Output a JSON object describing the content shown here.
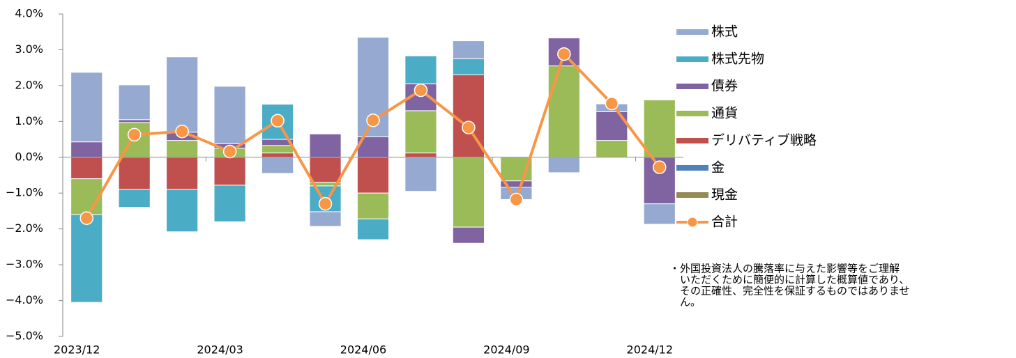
{
  "chart_data": {
    "type": "bar",
    "categories": [
      "2023/12",
      null,
      null,
      "2024/03",
      null,
      null,
      "2024/06",
      null,
      null,
      "2024/09",
      null,
      null,
      "2024/12"
    ],
    "series": [
      {
        "name": "株式",
        "color": "#95a9d1",
        "values": [
          1.94,
          0.97,
          2.1,
          1.6,
          -0.45,
          -0.41,
          2.78,
          -0.95,
          0.5,
          -0.34,
          -0.43,
          0.22,
          -0.57
        ]
      },
      {
        "name": "株式先物",
        "color": "#4bacc6",
        "values": [
          -2.45,
          -0.5,
          -1.18,
          -1.02,
          0.98,
          -0.72,
          -0.58,
          0.78,
          0.45,
          0,
          0,
          0,
          0
        ]
      },
      {
        "name": "債券",
        "color": "#8064a2",
        "values": [
          0.43,
          0.08,
          0.23,
          0.13,
          0.17,
          0.65,
          0.57,
          0.75,
          -0.45,
          -0.18,
          0.78,
          0.8,
          -1.3
        ]
      },
      {
        "name": "通貨",
        "color": "#9bbb59",
        "values": [
          -1.0,
          0.97,
          0.47,
          0.25,
          0.21,
          -0.1,
          -0.72,
          1.18,
          -1.95,
          -0.66,
          2.55,
          0.47,
          1.6
        ]
      },
      {
        "name": "デリバティブ戦略",
        "color": "#c0504d",
        "values": [
          -0.6,
          -0.9,
          -0.9,
          -0.78,
          0.12,
          -0.7,
          -1.0,
          0.12,
          2.3,
          0,
          0,
          0,
          0
        ]
      },
      {
        "name": "金",
        "color": "#4f81bd",
        "values": [
          0,
          0,
          0,
          0,
          0,
          0,
          0,
          0,
          0,
          0,
          0,
          0,
          0
        ]
      },
      {
        "name": "現金",
        "color": "#948a54",
        "values": [
          0,
          0,
          0,
          0,
          0,
          0,
          0,
          0,
          0,
          0,
          0,
          0,
          0
        ]
      }
    ],
    "line_series": {
      "name": "合計",
      "color": "#f79646",
      "values": [
        -1.7,
        0.63,
        0.72,
        0.16,
        1.02,
        -1.3,
        1.03,
        1.87,
        0.83,
        -1.18,
        2.88,
        1.5,
        -0.28
      ]
    },
    "ylim": [
      -5,
      4
    ],
    "yticks": [
      {
        "value": -5,
        "label": "−5.0%"
      },
      {
        "value": -4,
        "label": "−4.0%"
      },
      {
        "value": -3,
        "label": "−3.0%"
      },
      {
        "value": -2,
        "label": "−2.0%"
      },
      {
        "value": -1,
        "label": "−1.0%"
      },
      {
        "value": 0,
        "label": "0.0%"
      },
      {
        "value": 1,
        "label": "1.0%"
      },
      {
        "value": 2,
        "label": "2.0%"
      },
      {
        "value": 3,
        "label": "3.0%"
      },
      {
        "value": 4,
        "label": "4.0%"
      }
    ],
    "legend": "right",
    "note": [
      "・外国投資法人の騰落率に与えた影響等をご理解",
      "いただくために簡便的に計算した概算値であり、",
      "その正確性、完全性を保証するものではありませ",
      "ん。"
    ]
  }
}
